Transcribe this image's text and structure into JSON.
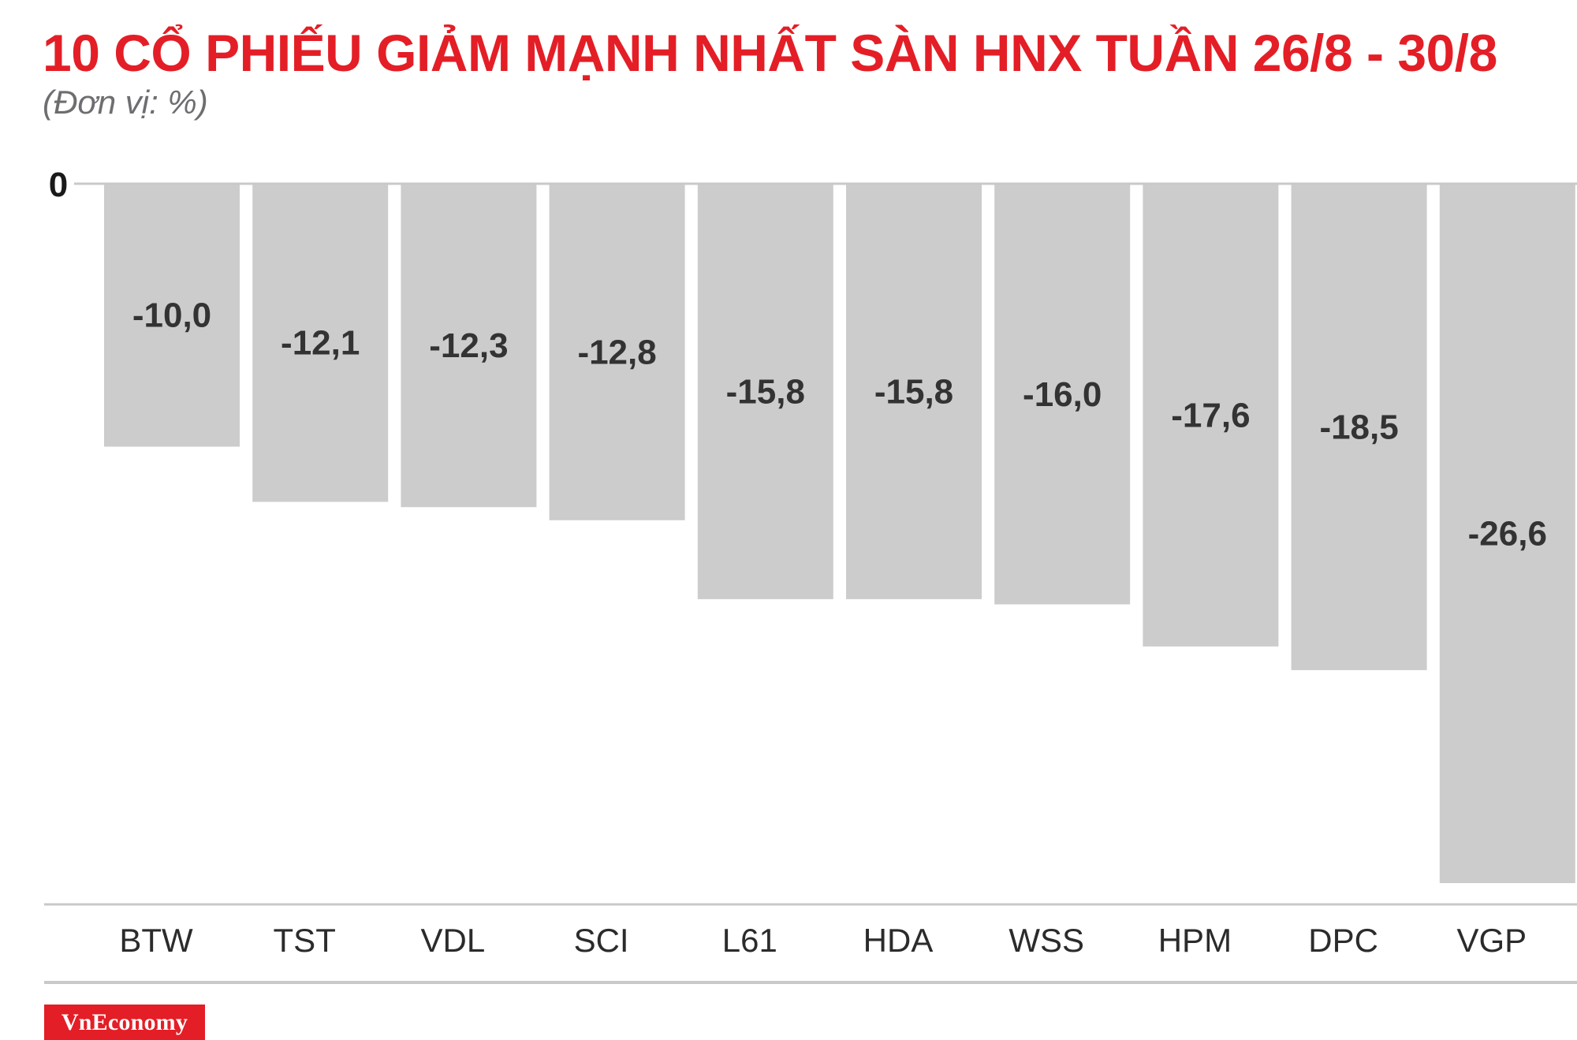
{
  "colors": {
    "title": "#e41e26",
    "bar": "#cdcccd",
    "axis": "#c9c9c9",
    "brand": "#e41e26"
  },
  "brand": {
    "name": "VnEconomy"
  },
  "chart_data": {
    "type": "bar",
    "title": "10 CỔ PHIẾU GIẢM MẠNH NHẤT SÀN HNX TUẦN 26/8 - 30/8",
    "subtitle": "(Đơn vị: %)",
    "categories": [
      "BTW",
      "TST",
      "VDL",
      "SCI",
      "L61",
      "HDA",
      "WSS",
      "HPM",
      "DPC",
      "VGP"
    ],
    "values": [
      -10.0,
      -12.1,
      -12.3,
      -12.8,
      -15.8,
      -15.8,
      -16.0,
      -17.6,
      -18.5,
      -26.6
    ],
    "value_labels": [
      "-10,0",
      "-12,1",
      "-12,3",
      "-12,8",
      "-15,8",
      "-15,8",
      "-16,0",
      "-17,6",
      "-18,5",
      "-26,6"
    ],
    "zero_label": "0",
    "ylim": [
      -26.6,
      0
    ],
    "orientation": "bars hang down from zero line",
    "grid": false,
    "legend": "none"
  }
}
